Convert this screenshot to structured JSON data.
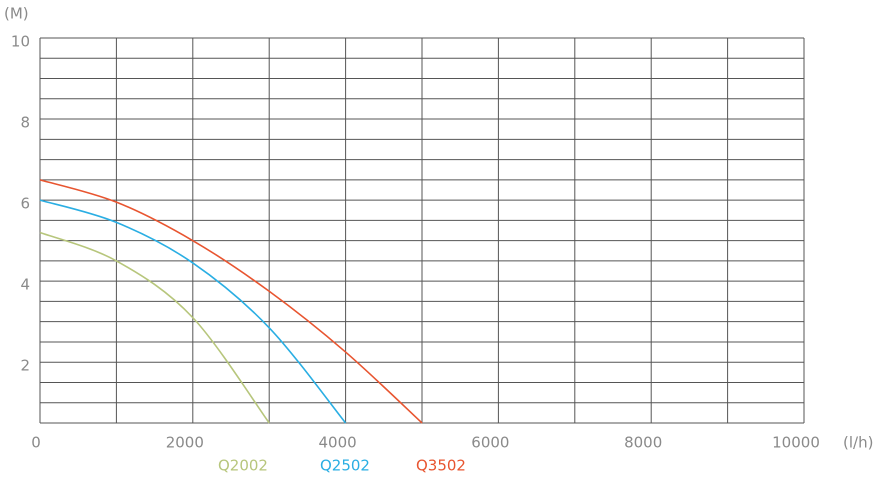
{
  "chart_data": {
    "type": "line",
    "y_label": "(M)",
    "x_label": "(l/h)",
    "xlim": [
      0,
      10000
    ],
    "xticks": [
      0,
      2000,
      4000,
      6000,
      8000,
      10000
    ],
    "xgrid": [
      0,
      1000,
      2000,
      3000,
      4000,
      5000,
      6000,
      7000,
      8000,
      9000,
      10000
    ],
    "ylim": [
      0.5,
      10
    ],
    "yticks": [
      2,
      4,
      6,
      8,
      10
    ],
    "ygrid": [
      0.5,
      1,
      1.5,
      2,
      2.5,
      3,
      3.5,
      4,
      4.5,
      5,
      5.5,
      6,
      6.5,
      7,
      7.5,
      8,
      8.5,
      9,
      9.5,
      10
    ],
    "grid": true,
    "series": [
      {
        "name": "Q2002",
        "color": "#b7c67c",
        "x": [
          0,
          1000,
          2000,
          3000
        ],
        "values": [
          5.2,
          4.5,
          3.1,
          0.5
        ]
      },
      {
        "name": "Q2502",
        "color": "#2aaee3",
        "x": [
          0,
          1000,
          2000,
          3000,
          4000
        ],
        "values": [
          6,
          5.45,
          4.45,
          2.85,
          0.5
        ]
      },
      {
        "name": "Q3502",
        "color": "#e85530",
        "x": [
          0,
          1000,
          2000,
          3000,
          4000,
          5000
        ],
        "values": [
          6.5,
          5.95,
          5.0,
          3.75,
          2.25,
          0.5
        ]
      }
    ]
  }
}
